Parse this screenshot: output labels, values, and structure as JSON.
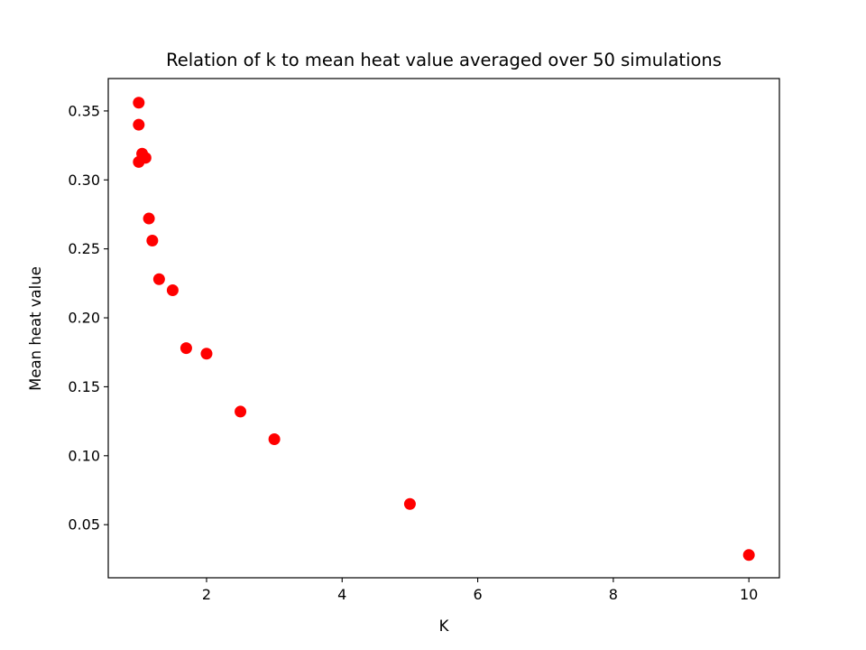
{
  "chart_data": {
    "type": "scatter",
    "title": "Relation of k to mean heat value averaged over 50 simulations",
    "xlabel": "K",
    "ylabel": "Mean heat value",
    "xlim": [
      0.55,
      10.45
    ],
    "ylim": [
      0.0115,
      0.3735
    ],
    "xticks": [
      2,
      4,
      6,
      8,
      10
    ],
    "xtick_labels": [
      "2",
      "4",
      "6",
      "8",
      "10"
    ],
    "yticks": [
      0.05,
      0.1,
      0.15,
      0.2,
      0.25,
      0.3,
      0.35
    ],
    "ytick_labels": [
      "0.05",
      "0.10",
      "0.15",
      "0.20",
      "0.25",
      "0.30",
      "0.35"
    ],
    "grid": false,
    "marker_color": "#ff0000",
    "points": [
      {
        "x": 1.0,
        "y": 0.356
      },
      {
        "x": 1.0,
        "y": 0.34
      },
      {
        "x": 1.05,
        "y": 0.319
      },
      {
        "x": 1.1,
        "y": 0.316
      },
      {
        "x": 1.0,
        "y": 0.313
      },
      {
        "x": 1.15,
        "y": 0.272
      },
      {
        "x": 1.2,
        "y": 0.256
      },
      {
        "x": 1.3,
        "y": 0.228
      },
      {
        "x": 1.5,
        "y": 0.22
      },
      {
        "x": 1.7,
        "y": 0.178
      },
      {
        "x": 2.0,
        "y": 0.174
      },
      {
        "x": 2.5,
        "y": 0.132
      },
      {
        "x": 3.0,
        "y": 0.112
      },
      {
        "x": 5.0,
        "y": 0.065
      },
      {
        "x": 10.0,
        "y": 0.028
      }
    ]
  }
}
